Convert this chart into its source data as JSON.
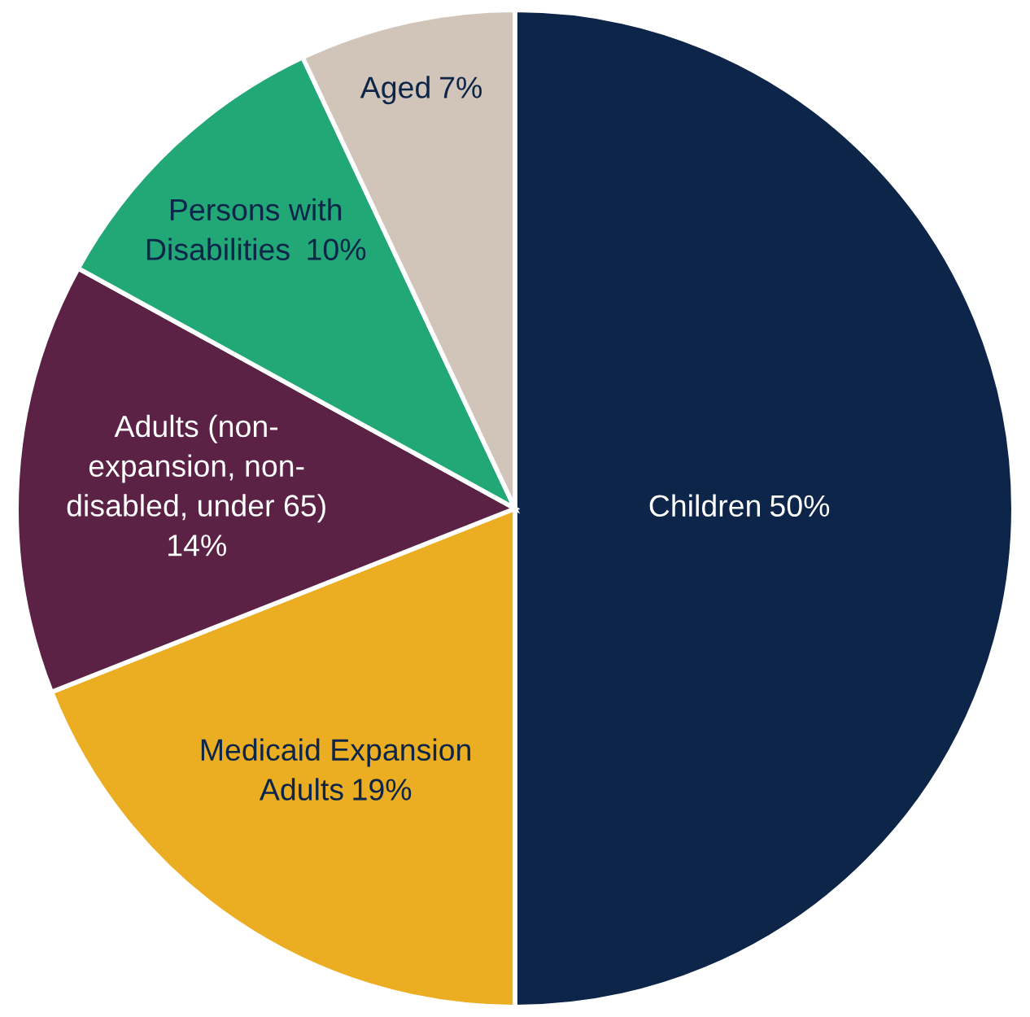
{
  "chart_data": {
    "type": "pie",
    "categories": [
      "Children",
      "Medicaid Expansion\nAdults",
      "Adults (non-\nexpansion, non-\ndisabled, under 65)\n",
      "Persons with\nDisabilities ",
      "Aged"
    ],
    "values": [
      50,
      19,
      14,
      10,
      7
    ],
    "colors": [
      "#0d2548",
      "#ebad21",
      "#5b2245",
      "#22a777",
      "#d1c4b9"
    ],
    "value_labels": [
      "50%",
      "19%",
      "14%",
      "10%",
      "7%"
    ]
  }
}
